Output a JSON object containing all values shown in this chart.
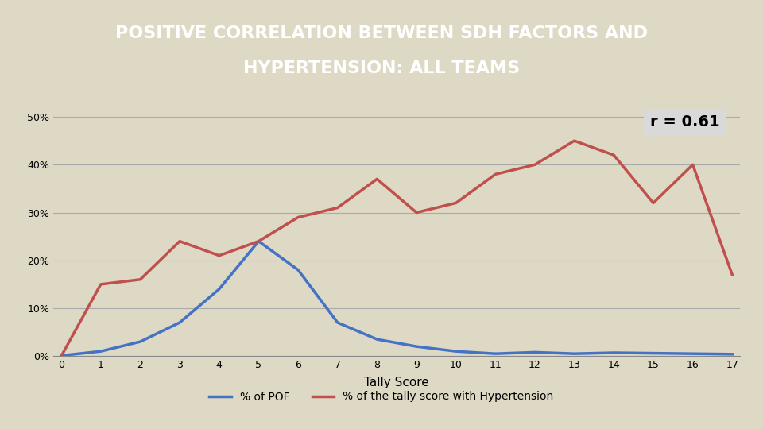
{
  "title_line1": "POSITIVE CORRELATION BETWEEN SDH FACTORS AND",
  "title_line2": "HYPERTENSION: ALL TEAMS",
  "title_bg": "#3d3d3d",
  "title_fg": "#ffffff",
  "annotation": "r = 0.61",
  "annotation_bg": "#d9d9d9",
  "plot_bg": "#ddd9c4",
  "xlabel": "Tally Score",
  "x": [
    0,
    1,
    2,
    3,
    4,
    5,
    6,
    7,
    8,
    9,
    10,
    11,
    12,
    13,
    14,
    15,
    16,
    17
  ],
  "blue_values": [
    0.001,
    0.01,
    0.03,
    0.07,
    0.14,
    0.24,
    0.18,
    0.07,
    0.035,
    0.02,
    0.01,
    0.005,
    0.008,
    0.005,
    0.007,
    0.006,
    0.005,
    0.004
  ],
  "red_values": [
    0.0,
    0.15,
    0.16,
    0.24,
    0.21,
    0.24,
    0.29,
    0.31,
    0.37,
    0.3,
    0.32,
    0.38,
    0.4,
    0.45,
    0.42,
    0.32,
    0.4,
    0.17
  ],
  "blue_color": "#4472c4",
  "red_color": "#c0504d",
  "legend_blue": "% of POF",
  "legend_red": "% of the tally score with Hypertension",
  "yticks": [
    0.0,
    0.1,
    0.2,
    0.3,
    0.4,
    0.5
  ],
  "ytick_labels": [
    "0%",
    "10%",
    "20%",
    "30%",
    "40%",
    "50%"
  ],
  "ylim": [
    0,
    0.52
  ],
  "grid_color": "#aaaaaa",
  "line_width": 2.5
}
